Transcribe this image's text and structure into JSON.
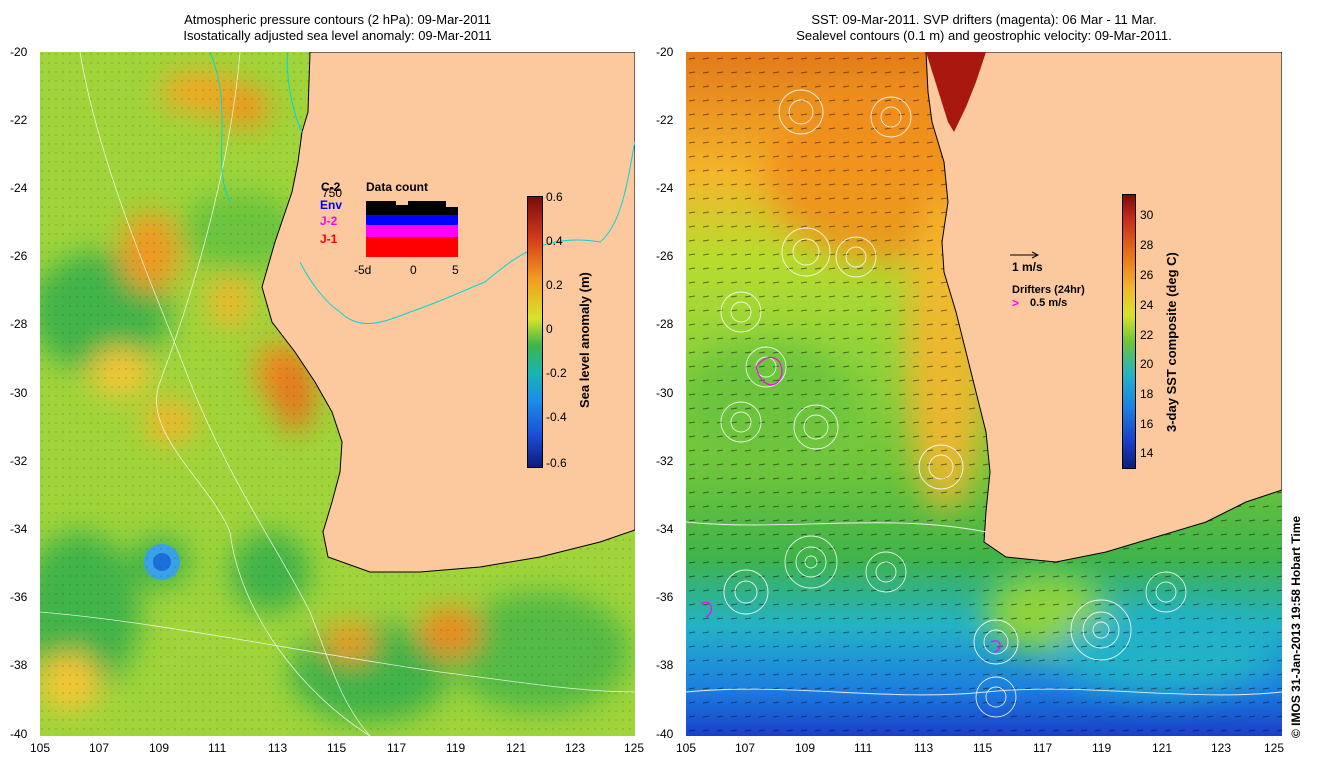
{
  "left_panel": {
    "title_line1": "Atmospheric pressure contours (2 hPa): 09-Mar-2011",
    "title_line2": "Isostatically adjusted sea level anomaly: 09-Mar-2011",
    "colorbar_label": "Sea level anomaly (m)",
    "colorbar_ticks": [
      "0.6",
      "0.4",
      "0.2",
      "0",
      "-0.2",
      "-0.4",
      "-0.6"
    ],
    "data_count": {
      "title": "Data count",
      "sats": [
        {
          "name": "C-2",
          "color": "#000000"
        },
        {
          "name": "Env",
          "color": "#0000ff"
        },
        {
          "name": "J-2",
          "color": "#ff00ff"
        },
        {
          "name": "J-1",
          "color": "#ff0000"
        }
      ],
      "ymax_label": "750",
      "x_labels": [
        "-5d",
        "0",
        "5"
      ]
    }
  },
  "right_panel": {
    "title_line1": "SST: 09-Mar-2011. SVP drifters (magenta): 06 Mar - 11 Mar.",
    "title_line2": "Sealevel contours (0.1 m) and geostrophic velocity: 09-Mar-2011.",
    "colorbar_label": "3-day SST composite (deg C)",
    "colorbar_ticks": [
      "30",
      "28",
      "26",
      "24",
      "22",
      "20",
      "18",
      "16",
      "14"
    ],
    "velocity_scale_label": "1 m/s",
    "drifters_label": "Drifters (24hr)",
    "drifter_scale_label": "0.5 m/s",
    "drifter_color": "#ff00ff"
  },
  "axes": {
    "lat_labels": [
      "-20",
      "-22",
      "-24",
      "-26",
      "-28",
      "-30",
      "-32",
      "-34",
      "-36",
      "-38",
      "-40"
    ],
    "lon_labels": [
      "105",
      "107",
      "109",
      "111",
      "113",
      "115",
      "117",
      "119",
      "121",
      "123",
      "125"
    ]
  },
  "land_color": "#fbc99d",
  "credit": "© IMOS 31-Jan-2013 19:58 Hobart Time"
}
